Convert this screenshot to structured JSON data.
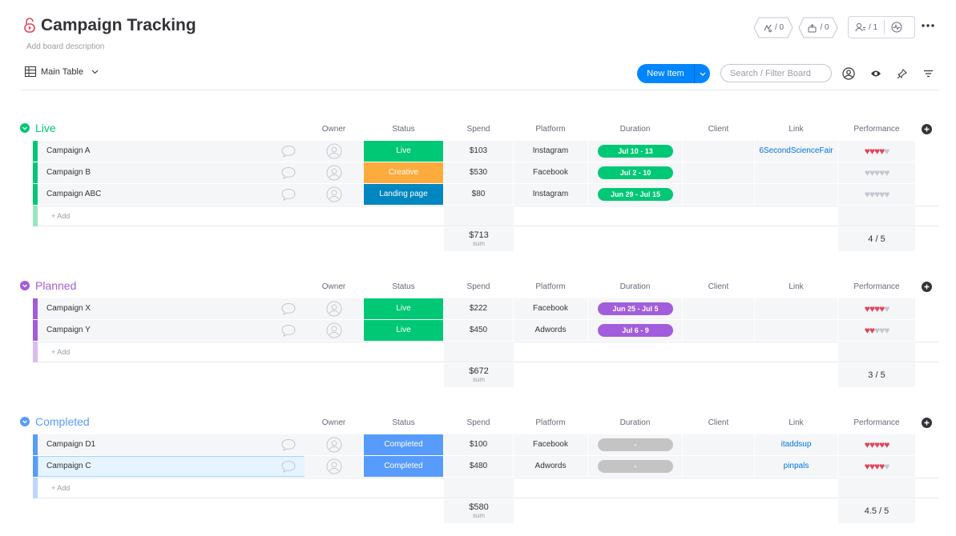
{
  "board": {
    "title": "Campaign Tracking",
    "description": "Add board description",
    "view_tab": "Main Table",
    "badges": {
      "activity": "/ 0",
      "integrations": "/ 0",
      "members": "/ 1"
    }
  },
  "toolbar": {
    "new_item": "New Item",
    "search_placeholder": "Search / Filter Board"
  },
  "columns": {
    "owner": "Owner",
    "status": "Status",
    "spend": "Spend",
    "platform": "Platform",
    "duration": "Duration",
    "client": "Client",
    "link": "Link",
    "performance": "Performance"
  },
  "add_row_label": "+ Add",
  "sum_label": "sum",
  "colors": {
    "live_green": "#00c875",
    "creative_orange": "#fdab3d",
    "landing_blue": "#0073ea",
    "landing_page_status": "#0086c0",
    "completed_blue": "#579bfc",
    "planned_purple": "#a25ddc",
    "done_grey": "#c4c4c4",
    "heart_red": "#e2445c",
    "heart_grey": "#c5c7d0"
  },
  "groups": [
    {
      "name": "Live",
      "color": "#00c875",
      "light": "#9ae5c1",
      "sum": "$713",
      "perf": "4 / 5",
      "rows": [
        {
          "name": "Campaign A",
          "status": "Live",
          "status_color": "#00c875",
          "spend": "$103",
          "platform": "Instagram",
          "duration": "Jul 10 - 13",
          "dur_color": "#00c875",
          "link": "6SecondScienceFair",
          "rating": 4
        },
        {
          "name": "Campaign B",
          "status": "Creative",
          "status_color": "#fdab3d",
          "spend": "$530",
          "platform": "Facebook",
          "duration": "Jul 2 - 10",
          "dur_color": "#00c875",
          "link": "",
          "rating": 0
        },
        {
          "name": "Campaign ABC",
          "status": "Landing page",
          "status_color": "#0086c0",
          "spend": "$80",
          "platform": "Instagram",
          "duration": "Jun 29 - Jul 15",
          "dur_color": "#00c875",
          "link": "",
          "rating": 0
        }
      ]
    },
    {
      "name": "Planned",
      "color": "#a25ddc",
      "light": "#d9bdf0",
      "sum": "$672",
      "perf": "3 / 5",
      "rows": [
        {
          "name": "Campaign X",
          "status": "Live",
          "status_color": "#00c875",
          "spend": "$222",
          "platform": "Facebook",
          "duration": "Jun 25 - Jul 5",
          "dur_color": "#a25ddc",
          "link": "",
          "rating": 4
        },
        {
          "name": "Campaign Y",
          "status": "Live",
          "status_color": "#00c875",
          "spend": "$450",
          "platform": "Adwords",
          "duration": "Jul 6 - 9",
          "dur_color": "#a25ddc",
          "link": "",
          "rating": 2
        }
      ]
    },
    {
      "name": "Completed",
      "color": "#579bfc",
      "light": "#bcd6fd",
      "sum": "$580",
      "perf": "4.5 / 5",
      "rows": [
        {
          "name": "Campaign D1",
          "status": "Completed",
          "status_color": "#579bfc",
          "spend": "$100",
          "platform": "Facebook",
          "duration": "-",
          "dur_color": "#c4c4c4",
          "link": "itaddsup",
          "rating": 5
        },
        {
          "name": "Campaign C",
          "status": "Completed",
          "status_color": "#579bfc",
          "spend": "$480",
          "platform": "Adwords",
          "duration": "-",
          "dur_color": "#c4c4c4",
          "link": "pinpals",
          "rating": 4,
          "selected": true
        }
      ]
    }
  ]
}
